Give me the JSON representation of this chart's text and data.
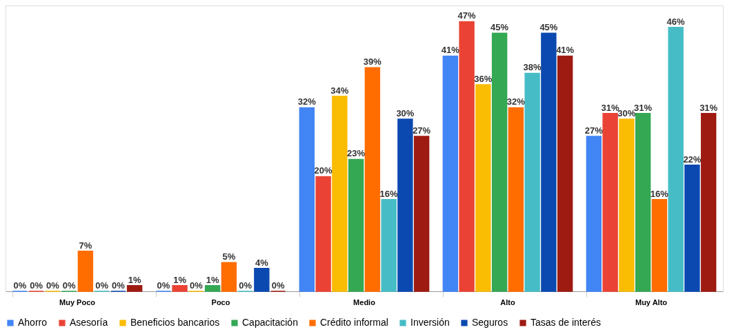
{
  "chart_data": {
    "type": "bar",
    "categories": [
      "Muy Poco",
      "Poco",
      "Medio",
      "Alto",
      "Muy Alto"
    ],
    "legend": "bottom",
    "grid": false,
    "series": [
      {
        "name": "Ahorro",
        "color": "#4285f4",
        "values": [
          0,
          0,
          32,
          41,
          27
        ],
        "value_labels": [
          "0%",
          "0%",
          "32%",
          "41%",
          "27%"
        ]
      },
      {
        "name": "Asesoría",
        "color": "#ea4335",
        "values": [
          0,
          1,
          20,
          47,
          31
        ],
        "value_labels": [
          "0%",
          "1%",
          "20%",
          "47%",
          "31%"
        ]
      },
      {
        "name": "Beneficios bancarios",
        "color": "#fbbc04",
        "values": [
          0,
          0,
          34,
          36,
          30
        ],
        "value_labels": [
          "0%",
          "0%",
          "34%",
          "36%",
          "30%"
        ]
      },
      {
        "name": "Capacitación",
        "color": "#34a853",
        "values": [
          0,
          1,
          23,
          45,
          31
        ],
        "value_labels": [
          "0%",
          "1%",
          "23%",
          "45%",
          "31%"
        ]
      },
      {
        "name": "Crédito informal",
        "color": "#ff6d01",
        "values": [
          7,
          5,
          39,
          32,
          16
        ],
        "value_labels": [
          "7%",
          "5%",
          "39%",
          "32%",
          "16%"
        ]
      },
      {
        "name": "Inversión",
        "color": "#46bdc6",
        "values": [
          0,
          0,
          16,
          38,
          46
        ],
        "value_labels": [
          "0%",
          "0%",
          "16%",
          "38%",
          "46%"
        ]
      },
      {
        "name": "Seguros",
        "color": "#0b49b0",
        "values": [
          0,
          4,
          30,
          45,
          22
        ],
        "value_labels": [
          "0%",
          "4%",
          "30%",
          "45%",
          "22%"
        ]
      },
      {
        "name": "Tasas de interés",
        "color": "#9e1b12",
        "values": [
          1,
          0,
          27,
          41,
          31
        ],
        "value_labels": [
          "1%",
          "0%",
          "27%",
          "41%",
          "31%"
        ]
      }
    ]
  }
}
